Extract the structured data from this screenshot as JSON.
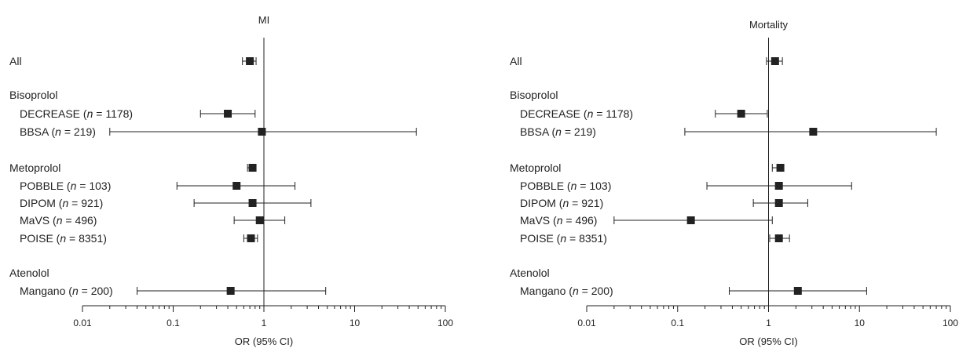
{
  "chart_data": [
    {
      "type": "forest",
      "title": "MI",
      "xlabel": "OR (95% CI)",
      "xscale": "log",
      "xlim": [
        0.01,
        100
      ],
      "xticks": [
        "0.01",
        "0.1",
        "1",
        "10",
        "100"
      ],
      "reference_line": 1,
      "rows": [
        {
          "kind": "estimate",
          "level": 0,
          "label": "All",
          "or": 0.7,
          "lo": 0.58,
          "hi": 0.82
        },
        {
          "kind": "header",
          "level": 0,
          "label": "Bisoprolol"
        },
        {
          "kind": "estimate",
          "level": 1,
          "label_prefix": "DECREASE (",
          "label_n": "n",
          "label_suffix": " = 1178)",
          "or": 0.4,
          "lo": 0.2,
          "hi": 0.8
        },
        {
          "kind": "estimate",
          "level": 1,
          "label_prefix": "BBSA (",
          "label_n": "n",
          "label_suffix": " = 219)",
          "or": 0.95,
          "lo": 0.02,
          "hi": 48
        },
        {
          "kind": "header",
          "level": 0,
          "label": "Metoprolol"
        },
        {
          "kind": "estimate",
          "level": 1,
          "label_prefix": "POBBLE (",
          "label_n": "n",
          "label_suffix": " = 103)",
          "or": 0.5,
          "lo": 0.11,
          "hi": 2.2
        },
        {
          "kind": "estimate",
          "level": 1,
          "label_prefix": "DIPOM (",
          "label_n": "n",
          "label_suffix": " = 921)",
          "or": 0.75,
          "lo": 0.17,
          "hi": 3.3
        },
        {
          "kind": "estimate",
          "level": 1,
          "label_prefix": "MaVS (",
          "label_n": "n",
          "label_suffix": " = 496)",
          "or": 0.9,
          "lo": 0.47,
          "hi": 1.7
        },
        {
          "kind": "estimate",
          "level": 1,
          "label_prefix": "POISE (",
          "label_n": "n",
          "label_suffix": " = 8351)",
          "or": 0.72,
          "lo": 0.6,
          "hi": 0.85
        },
        {
          "kind": "header",
          "level": 0,
          "label": "Atenolol"
        },
        {
          "kind": "estimate",
          "level": 1,
          "label_prefix": "Mangano (",
          "label_n": "n",
          "label_suffix": " = 200)",
          "or": 0.43,
          "lo": 0.04,
          "hi": 4.8
        }
      ],
      "pooled": [
        {
          "label": "Metoprolol",
          "or": 0.75,
          "lo": 0.66,
          "hi": 0.8
        }
      ]
    },
    {
      "type": "forest",
      "title": "Mortality",
      "xlabel": "OR (95% CI)",
      "xscale": "log",
      "xlim": [
        0.01,
        100
      ],
      "xticks": [
        "0.01",
        "0.1",
        "1",
        "10",
        "100"
      ],
      "reference_line": 1,
      "rows": [
        {
          "kind": "estimate",
          "level": 0,
          "label": "All",
          "or": 1.18,
          "lo": 0.95,
          "hi": 1.42
        },
        {
          "kind": "header",
          "level": 0,
          "label": "Bisoprolol"
        },
        {
          "kind": "estimate",
          "level": 1,
          "label_prefix": "DECREASE (",
          "label_n": "n",
          "label_suffix": " = 1178)",
          "or": 0.5,
          "lo": 0.26,
          "hi": 0.97
        },
        {
          "kind": "estimate",
          "level": 1,
          "label_prefix": "BBSA (",
          "label_n": "n",
          "label_suffix": " = 219)",
          "or": 3.1,
          "lo": 0.12,
          "hi": 70
        },
        {
          "kind": "header",
          "level": 0,
          "label": "Metoprolol"
        },
        {
          "kind": "estimate",
          "level": 1,
          "label_prefix": "POBBLE (",
          "label_n": "n",
          "label_suffix": " = 103)",
          "or": 1.3,
          "lo": 0.21,
          "hi": 8.2
        },
        {
          "kind": "estimate",
          "level": 1,
          "label_prefix": "DIPOM (",
          "label_n": "n",
          "label_suffix": " = 921)",
          "or": 1.3,
          "lo": 0.68,
          "hi": 2.7
        },
        {
          "kind": "estimate",
          "level": 1,
          "label_prefix": "MaVS (",
          "label_n": "n",
          "label_suffix": " = 496)",
          "or": 0.14,
          "lo": 0.02,
          "hi": 1.1
        },
        {
          "kind": "estimate",
          "level": 1,
          "label_prefix": "POISE (",
          "label_n": "n",
          "label_suffix": " = 8351)",
          "or": 1.3,
          "lo": 1.03,
          "hi": 1.7
        },
        {
          "kind": "header",
          "level": 0,
          "label": "Atenolol"
        },
        {
          "kind": "estimate",
          "level": 1,
          "label_prefix": "Mangano (",
          "label_n": "n",
          "label_suffix": " = 200)",
          "or": 2.1,
          "lo": 0.37,
          "hi": 12
        }
      ],
      "pooled": [
        {
          "label": "Metoprolol",
          "or": 1.35,
          "lo": 1.1,
          "hi": 1.45
        }
      ]
    }
  ],
  "colors": {
    "ink": "#222222",
    "background": "#ffffff"
  }
}
